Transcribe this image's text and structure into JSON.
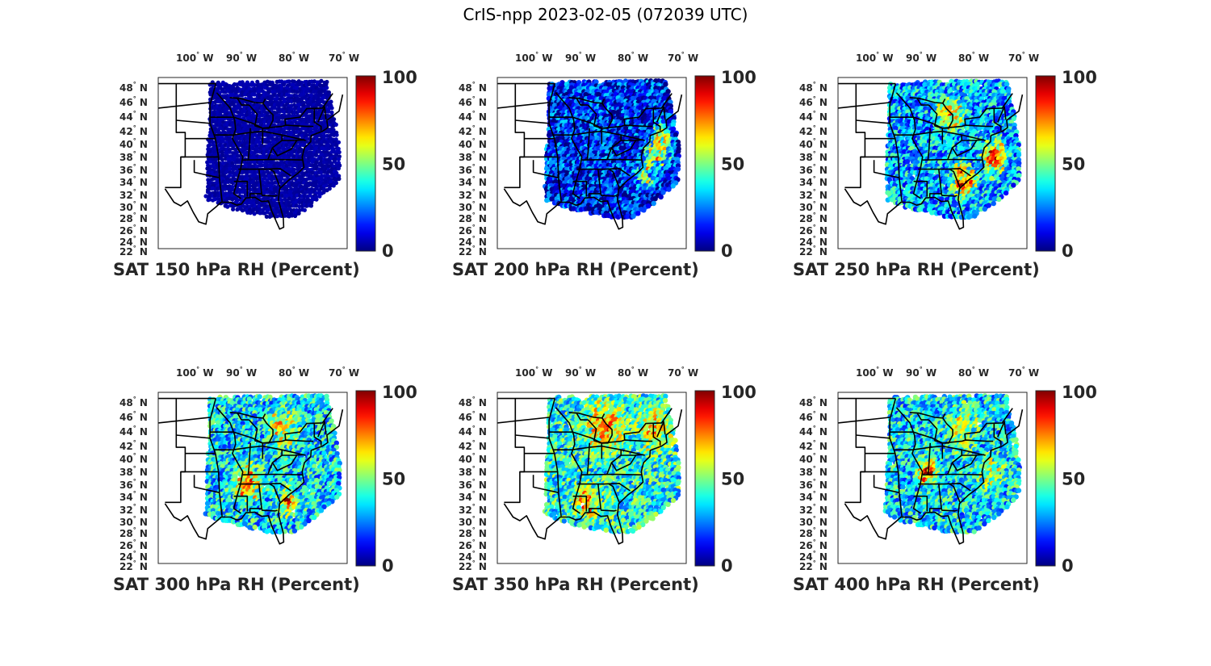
{
  "figure": {
    "title": "CrIS-npp 2023-02-05 (072039 UTC)"
  },
  "lon_ticks": [
    {
      "label": "100",
      "dir": "W"
    },
    {
      "label": "90",
      "dir": "W"
    },
    {
      "label": "80",
      "dir": "W"
    },
    {
      "label": "70",
      "dir": "W"
    }
  ],
  "lat_ticks": [
    {
      "label": "48",
      "dir": "N"
    },
    {
      "label": "46",
      "dir": "N"
    },
    {
      "label": "44",
      "dir": "N"
    },
    {
      "label": "42",
      "dir": "N"
    },
    {
      "label": "40",
      "dir": "N"
    },
    {
      "label": "38",
      "dir": "N"
    },
    {
      "label": "36",
      "dir": "N"
    },
    {
      "label": "34",
      "dir": "N"
    },
    {
      "label": "32",
      "dir": "N"
    },
    {
      "label": "30",
      "dir": "N"
    },
    {
      "label": "28",
      "dir": "N"
    },
    {
      "label": "26",
      "dir": "N"
    },
    {
      "label": "24",
      "dir": "N"
    },
    {
      "label": "22",
      "dir": "N"
    }
  ],
  "colorbar": {
    "min": "0",
    "mid": "50",
    "max": "100",
    "colormap": "jet"
  },
  "panels": [
    {
      "title": "SAT 150 hPa RH (Percent)",
      "level_hPa": 150,
      "typical_rh": 4,
      "moist_region": "none"
    },
    {
      "title": "SAT 200 hPa RH (Percent)",
      "level_hPa": 200,
      "typical_rh": 15,
      "moist_region": "mid-atlantic coast"
    },
    {
      "title": "SAT 250 hPa RH (Percent)",
      "level_hPa": 250,
      "typical_rh": 30,
      "moist_region": "southeast and great lakes"
    },
    {
      "title": "SAT 300 hPa RH (Percent)",
      "level_hPa": 300,
      "typical_rh": 35,
      "moist_region": "lower mississippi valley"
    },
    {
      "title": "SAT 350 hPa RH (Percent)",
      "level_hPa": 350,
      "typical_rh": 40,
      "moist_region": "great lakes and gulf coast"
    },
    {
      "title": "SAT 400 hPa RH (Percent)",
      "level_hPa": 400,
      "typical_rh": 35,
      "moist_region": "tennessee valley"
    }
  ]
}
